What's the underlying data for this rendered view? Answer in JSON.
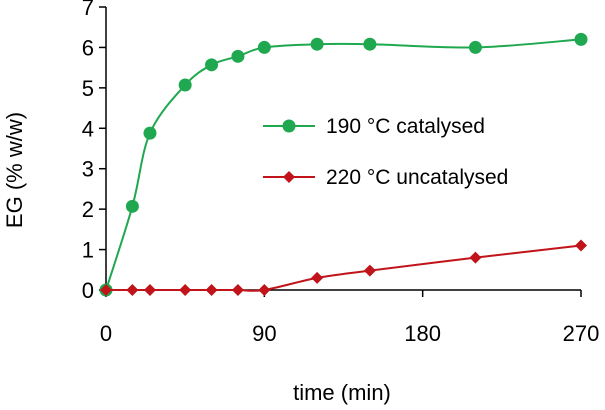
{
  "chart_data": {
    "type": "line",
    "title": "",
    "xlabel": "time (min)",
    "ylabel": "EG (% w/w)",
    "xlim": [
      0,
      270
    ],
    "ylim": [
      0,
      7
    ],
    "xticks": [
      0,
      90,
      180,
      270
    ],
    "yticks": [
      0,
      1,
      2,
      3,
      4,
      5,
      6,
      7
    ],
    "grid": false,
    "legend_position": "center-right",
    "series": [
      {
        "name": "190  °C catalysed",
        "color": "#1fa84f",
        "marker": "circle",
        "x": [
          0,
          15,
          25,
          45,
          60,
          75,
          90,
          120,
          150,
          210,
          270
        ],
        "values": [
          0,
          2.07,
          3.88,
          5.07,
          5.57,
          5.78,
          6.0,
          6.08,
          6.08,
          6.0,
          6.2
        ]
      },
      {
        "name": "220  °C uncatalysed",
        "color": "#c0141a",
        "marker": "diamond",
        "x": [
          0,
          15,
          25,
          45,
          60,
          75,
          90,
          120,
          150,
          210,
          270
        ],
        "values": [
          0,
          0,
          0,
          0,
          0,
          0,
          0,
          0.3,
          0.48,
          0.8,
          1.1
        ]
      }
    ]
  }
}
